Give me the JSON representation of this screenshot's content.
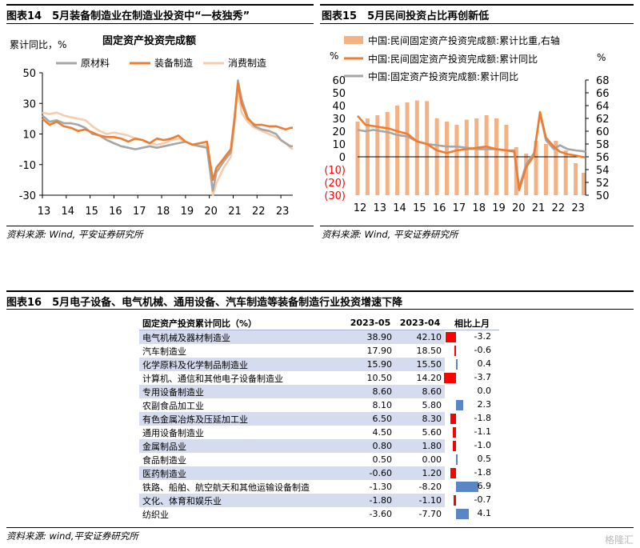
{
  "fig14": {
    "title": "图表14　5月装备制造业在制造业投资中“一枝独秀”",
    "chart_title": "固定资产投资完成额",
    "unit_label": "累计同比，%",
    "source": "资料来源: Wind, 平安证券研究所"
  },
  "fig15": {
    "title": "图表15　5月民间投资占比再创新低",
    "left_unit": "%",
    "right_unit": "%",
    "source": "资料来源: Wind, 平安证券研究所"
  },
  "fig16": {
    "title": "图表16　5月电子设备、电气机械、通用设备、汽车制造等装备制造行业投资增速下降",
    "source": "资料来源: wind,平安证券研究所"
  },
  "watermark": "格隆汇",
  "colors": {
    "raw": "#a6a6a6",
    "equip": "#ed7d31",
    "consumer": "#f8cbad",
    "share_bar": "#f4b183",
    "down_bar": "#ff0000",
    "up_bar": "#5b86c5"
  },
  "chart_data": [
    {
      "type": "line",
      "ylim": [
        -30,
        50
      ],
      "yticks": [
        "50",
        "30",
        "10",
        "-10",
        "-30"
      ],
      "xticks": [
        "13",
        "14",
        "15",
        "16",
        "17",
        "18",
        "19",
        "20",
        "21",
        "22",
        "23"
      ],
      "x_start": 2013.0,
      "x_end": 2023.5,
      "series": [
        {
          "name": "原材料",
          "color_key": "raw",
          "points": [
            [
              2013.0,
              22
            ],
            [
              2013.3,
              18
            ],
            [
              2013.6,
              19
            ],
            [
              2013.9,
              17
            ],
            [
              2014.2,
              17
            ],
            [
              2014.5,
              16
            ],
            [
              2014.8,
              14
            ],
            [
              2015.1,
              10
            ],
            [
              2015.4,
              9
            ],
            [
              2015.7,
              6
            ],
            [
              2016.0,
              4
            ],
            [
              2016.3,
              2
            ],
            [
              2016.6,
              1
            ],
            [
              2016.9,
              0
            ],
            [
              2017.2,
              1
            ],
            [
              2017.5,
              2
            ],
            [
              2017.8,
              1
            ],
            [
              2018.1,
              2
            ],
            [
              2018.4,
              3
            ],
            [
              2018.7,
              4
            ],
            [
              2019.0,
              5
            ],
            [
              2019.3,
              3
            ],
            [
              2019.6,
              2
            ],
            [
              2019.9,
              1
            ],
            [
              2020.15,
              -27
            ],
            [
              2020.3,
              -15
            ],
            [
              2020.6,
              -8
            ],
            [
              2020.9,
              -2
            ],
            [
              2021.05,
              18
            ],
            [
              2021.2,
              45
            ],
            [
              2021.35,
              33
            ],
            [
              2021.6,
              21
            ],
            [
              2021.9,
              15
            ],
            [
              2022.2,
              13
            ],
            [
              2022.5,
              12
            ],
            [
              2022.8,
              10
            ],
            [
              2023.0,
              6
            ],
            [
              2023.2,
              4
            ],
            [
              2023.4,
              2
            ],
            [
              2023.5,
              2
            ]
          ]
        },
        {
          "name": "装备制造",
          "color_key": "equip",
          "points": [
            [
              2013.0,
              20
            ],
            [
              2013.3,
              16
            ],
            [
              2013.6,
              18
            ],
            [
              2013.9,
              15
            ],
            [
              2014.2,
              14
            ],
            [
              2014.5,
              12
            ],
            [
              2014.8,
              13
            ],
            [
              2015.1,
              11
            ],
            [
              2015.4,
              9
            ],
            [
              2015.7,
              8
            ],
            [
              2016.0,
              8
            ],
            [
              2016.3,
              7
            ],
            [
              2016.6,
              5
            ],
            [
              2016.9,
              7
            ],
            [
              2017.2,
              6
            ],
            [
              2017.5,
              4
            ],
            [
              2017.8,
              7
            ],
            [
              2018.1,
              6
            ],
            [
              2018.4,
              7
            ],
            [
              2018.7,
              9
            ],
            [
              2019.0,
              5
            ],
            [
              2019.3,
              3
            ],
            [
              2019.6,
              4
            ],
            [
              2019.9,
              5
            ],
            [
              2020.15,
              -20
            ],
            [
              2020.3,
              -12
            ],
            [
              2020.6,
              -6
            ],
            [
              2020.9,
              0
            ],
            [
              2021.05,
              20
            ],
            [
              2021.2,
              43
            ],
            [
              2021.35,
              30
            ],
            [
              2021.6,
              20
            ],
            [
              2021.9,
              16
            ],
            [
              2022.2,
              16
            ],
            [
              2022.5,
              15
            ],
            [
              2022.8,
              15
            ],
            [
              2023.0,
              14
            ],
            [
              2023.2,
              13
            ],
            [
              2023.4,
              14
            ],
            [
              2023.5,
              14
            ]
          ]
        },
        {
          "name": "消费制造",
          "color_key": "consumer",
          "points": [
            [
              2013.0,
              24
            ],
            [
              2013.3,
              23
            ],
            [
              2013.6,
              24
            ],
            [
              2013.9,
              22
            ],
            [
              2014.2,
              21
            ],
            [
              2014.5,
              20
            ],
            [
              2014.8,
              19
            ],
            [
              2015.1,
              15
            ],
            [
              2015.4,
              12
            ],
            [
              2015.7,
              10
            ],
            [
              2016.0,
              11
            ],
            [
              2016.3,
              10
            ],
            [
              2016.6,
              9
            ],
            [
              2016.9,
              7
            ],
            [
              2017.2,
              6
            ],
            [
              2017.5,
              4
            ],
            [
              2017.8,
              3
            ],
            [
              2018.1,
              4
            ],
            [
              2018.4,
              6
            ],
            [
              2018.7,
              7
            ],
            [
              2019.0,
              5
            ],
            [
              2019.3,
              3
            ],
            [
              2019.6,
              2
            ],
            [
              2019.9,
              3
            ],
            [
              2020.15,
              -30
            ],
            [
              2020.3,
              -22
            ],
            [
              2020.6,
              -12
            ],
            [
              2020.9,
              -5
            ],
            [
              2021.05,
              16
            ],
            [
              2021.2,
              40
            ],
            [
              2021.35,
              24
            ],
            [
              2021.6,
              18
            ],
            [
              2021.9,
              14
            ],
            [
              2022.2,
              12
            ],
            [
              2022.5,
              10
            ],
            [
              2022.8,
              8
            ],
            [
              2023.0,
              6
            ],
            [
              2023.2,
              4
            ],
            [
              2023.4,
              1
            ],
            [
              2023.5,
              0
            ]
          ]
        }
      ]
    },
    {
      "type": "bar+line",
      "ylim_left": [
        -30,
        60
      ],
      "ylim_right": [
        50,
        68
      ],
      "yticks_left": [
        "60",
        "50",
        "40",
        "30",
        "20",
        "10",
        "0",
        "(10)",
        "(20)",
        "(30)"
      ],
      "yticks_right": [
        "68",
        "66",
        "64",
        "62",
        "60",
        "58",
        "56",
        "54",
        "52",
        "50"
      ],
      "xticks": [
        "12",
        "13",
        "14",
        "15",
        "16",
        "17",
        "18",
        "19",
        "20",
        "21",
        "22",
        "23"
      ],
      "x_start": 2012.0,
      "x_end": 2023.5,
      "series": [
        {
          "name": "中国:民间固定资产投资完成额:累计比重,右轴",
          "kind": "bar",
          "axis": "right",
          "color_key": "share_bar",
          "points": [
            [
              2012.0,
              61.5
            ],
            [
              2012.5,
              62.0
            ],
            [
              2013.0,
              62.5
            ],
            [
              2013.5,
              63.0
            ],
            [
              2014.0,
              64.0
            ],
            [
              2014.5,
              64.5
            ],
            [
              2015.0,
              64.8
            ],
            [
              2015.5,
              64.7
            ],
            [
              2016.0,
              62.0
            ],
            [
              2016.5,
              61.5
            ],
            [
              2017.0,
              61.0
            ],
            [
              2017.5,
              61.8
            ],
            [
              2018.0,
              62.0
            ],
            [
              2018.5,
              62.5
            ],
            [
              2019.0,
              62.0
            ],
            [
              2019.5,
              61.0
            ],
            [
              2020.0,
              57.5
            ],
            [
              2020.5,
              56.5
            ],
            [
              2021.0,
              58.5
            ],
            [
              2021.5,
              58.0
            ],
            [
              2022.0,
              58.5
            ],
            [
              2022.5,
              57.0
            ],
            [
              2023.0,
              55.0
            ],
            [
              2023.4,
              53.5
            ]
          ]
        },
        {
          "name": "中国:民间固定资产投资完成额:累计同比",
          "kind": "line",
          "axis": "left",
          "color_key": "equip",
          "points": [
            [
              2012.0,
              32
            ],
            [
              2012.4,
              25
            ],
            [
              2012.8,
              24
            ],
            [
              2013.2,
              23
            ],
            [
              2013.6,
              22
            ],
            [
              2014.0,
              20
            ],
            [
              2014.5,
              18
            ],
            [
              2015.0,
              12
            ],
            [
              2015.5,
              10
            ],
            [
              2016.0,
              5
            ],
            [
              2016.5,
              3
            ],
            [
              2017.0,
              5
            ],
            [
              2017.5,
              6
            ],
            [
              2018.0,
              7
            ],
            [
              2018.5,
              8
            ],
            [
              2019.0,
              6
            ],
            [
              2019.5,
              5
            ],
            [
              2019.9,
              4
            ],
            [
              2020.15,
              -26
            ],
            [
              2020.5,
              -8
            ],
            [
              2020.9,
              1
            ],
            [
              2021.2,
              35
            ],
            [
              2021.5,
              15
            ],
            [
              2021.9,
              8
            ],
            [
              2022.2,
              4
            ],
            [
              2022.6,
              2
            ],
            [
              2023.0,
              1
            ],
            [
              2023.3,
              0
            ],
            [
              2023.5,
              -0.5
            ]
          ]
        },
        {
          "name": "中国:固定资产投资完成额:累计同比",
          "kind": "line",
          "axis": "left",
          "color_key": "raw",
          "points": [
            [
              2012.0,
              21
            ],
            [
              2012.4,
              20
            ],
            [
              2012.8,
              21
            ],
            [
              2013.2,
              20
            ],
            [
              2013.6,
              19
            ],
            [
              2014.0,
              17
            ],
            [
              2014.5,
              16
            ],
            [
              2015.0,
              12
            ],
            [
              2015.5,
              10
            ],
            [
              2016.0,
              9
            ],
            [
              2016.5,
              8
            ],
            [
              2017.0,
              8
            ],
            [
              2017.5,
              7
            ],
            [
              2018.0,
              6
            ],
            [
              2018.5,
              6
            ],
            [
              2019.0,
              6
            ],
            [
              2019.5,
              5
            ],
            [
              2019.9,
              5
            ],
            [
              2020.15,
              -24
            ],
            [
              2020.5,
              -6
            ],
            [
              2020.9,
              3
            ],
            [
              2021.2,
              34
            ],
            [
              2021.5,
              13
            ],
            [
              2021.9,
              6
            ],
            [
              2022.2,
              9
            ],
            [
              2022.6,
              6
            ],
            [
              2023.0,
              5
            ],
            [
              2023.3,
              4.5
            ],
            [
              2023.5,
              4
            ]
          ]
        }
      ]
    },
    {
      "type": "table",
      "headers": [
        "固定资产投资累计同比（%）",
        "2023-05",
        "2023-04",
        "相比上月"
      ],
      "rows": [
        {
          "name": "电气机械及器材制造业",
          "v1": "38.90",
          "v2": "42.10",
          "diff": -3.2,
          "diff_label": "-3.2"
        },
        {
          "name": "汽车制造业",
          "v1": "17.90",
          "v2": "18.50",
          "diff": -0.6,
          "diff_label": "-0.6"
        },
        {
          "name": "化学原料及化学制品制造业",
          "v1": "15.90",
          "v2": "15.50",
          "diff": 0.4,
          "diff_label": "0.4"
        },
        {
          "name": "计算机、通信和其他电子设备制造业",
          "v1": "10.50",
          "v2": "14.20",
          "diff": -3.7,
          "diff_label": "-3.7"
        },
        {
          "name": "专用设备制造业",
          "v1": "8.60",
          "v2": "8.60",
          "diff": 0.0,
          "diff_label": "0.0"
        },
        {
          "name": "农副食品加工业",
          "v1": "8.10",
          "v2": "5.80",
          "diff": 2.3,
          "diff_label": "2.3"
        },
        {
          "name": "有色金属冶炼及压延加工业",
          "v1": "6.50",
          "v2": "8.30",
          "diff": -1.8,
          "diff_label": "-1.8"
        },
        {
          "name": "通用设备制造业",
          "v1": "4.50",
          "v2": "5.60",
          "diff": -1.1,
          "diff_label": "-1.1"
        },
        {
          "name": "金属制品业",
          "v1": "0.80",
          "v2": "1.80",
          "diff": -1.0,
          "diff_label": "-1.0"
        },
        {
          "name": "食品制造业",
          "v1": "0.50",
          "v2": "0.00",
          "diff": 0.5,
          "diff_label": "0.5"
        },
        {
          "name": "医药制造业",
          "v1": "-0.60",
          "v2": "1.20",
          "diff": -1.8,
          "diff_label": "-1.8"
        },
        {
          "name": "铁路、船舶、航空航天和其他运输设备制造",
          "v1": "-1.30",
          "v2": "-8.20",
          "diff": 6.9,
          "diff_label": "6.9"
        },
        {
          "name": "文化、体育和娱乐业",
          "v1": "-1.80",
          "v2": "-1.10",
          "diff": -0.7,
          "diff_label": "-0.7"
        },
        {
          "name": "纺织业",
          "v1": "-3.60",
          "v2": "-7.70",
          "diff": 4.1,
          "diff_label": "4.1"
        }
      ]
    }
  ]
}
